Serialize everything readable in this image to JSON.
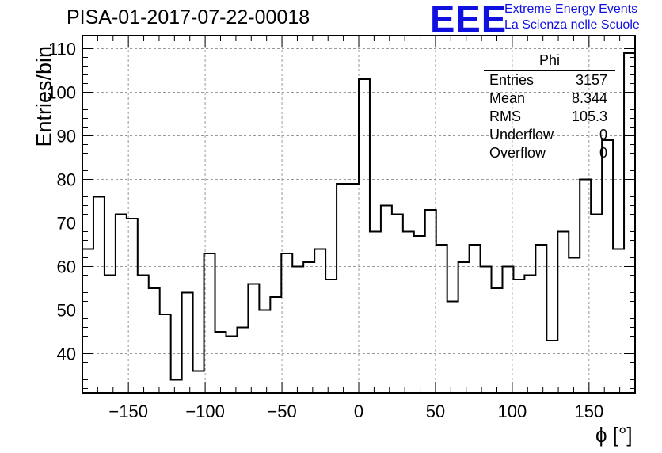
{
  "title": "PISA-01-2017-07-22-00018",
  "logo": {
    "mark": "EEE",
    "line1": "Extreme Energy Events",
    "line2": "La Scienza nelle Scuole",
    "color": "#1010e0"
  },
  "stats": {
    "name": "Phi",
    "rows": [
      {
        "label": "Entries",
        "value": "3157"
      },
      {
        "label": "Mean",
        "value": "8.344"
      },
      {
        "label": "RMS",
        "value": "105.3"
      },
      {
        "label": "Underflow",
        "value": "0"
      },
      {
        "label": "Overflow",
        "value": "0"
      }
    ]
  },
  "chart_data": {
    "type": "histogram",
    "title": "PISA-01-2017-07-22-00018",
    "xlabel": "ϕ [°]",
    "ylabel": "Entries/bin",
    "xlim": [
      -180,
      180
    ],
    "ylim": [
      31,
      113
    ],
    "grid": true,
    "bin_width": 7.2,
    "xticks": [
      -150,
      -100,
      -50,
      0,
      50,
      100,
      150
    ],
    "xtick_labels": [
      "−150",
      "−100",
      "−50",
      "0",
      "50",
      "100",
      "150"
    ],
    "yticks": [
      40,
      50,
      60,
      70,
      80,
      90,
      100,
      110
    ],
    "yticks_labels": [
      "40",
      "50",
      "60",
      "70",
      "80",
      "90",
      "100",
      "110"
    ],
    "values": [
      64,
      76,
      58,
      72,
      71,
      58,
      55,
      49,
      34,
      54,
      36,
      63,
      45,
      44,
      46,
      56,
      50,
      53,
      63,
      60,
      61,
      64,
      57,
      79,
      79,
      103,
      68,
      74,
      72,
      68,
      67,
      73,
      65,
      52,
      61,
      65,
      60,
      55,
      60,
      57,
      58,
      65,
      43,
      68,
      62,
      80,
      72,
      89,
      64,
      109
    ]
  }
}
